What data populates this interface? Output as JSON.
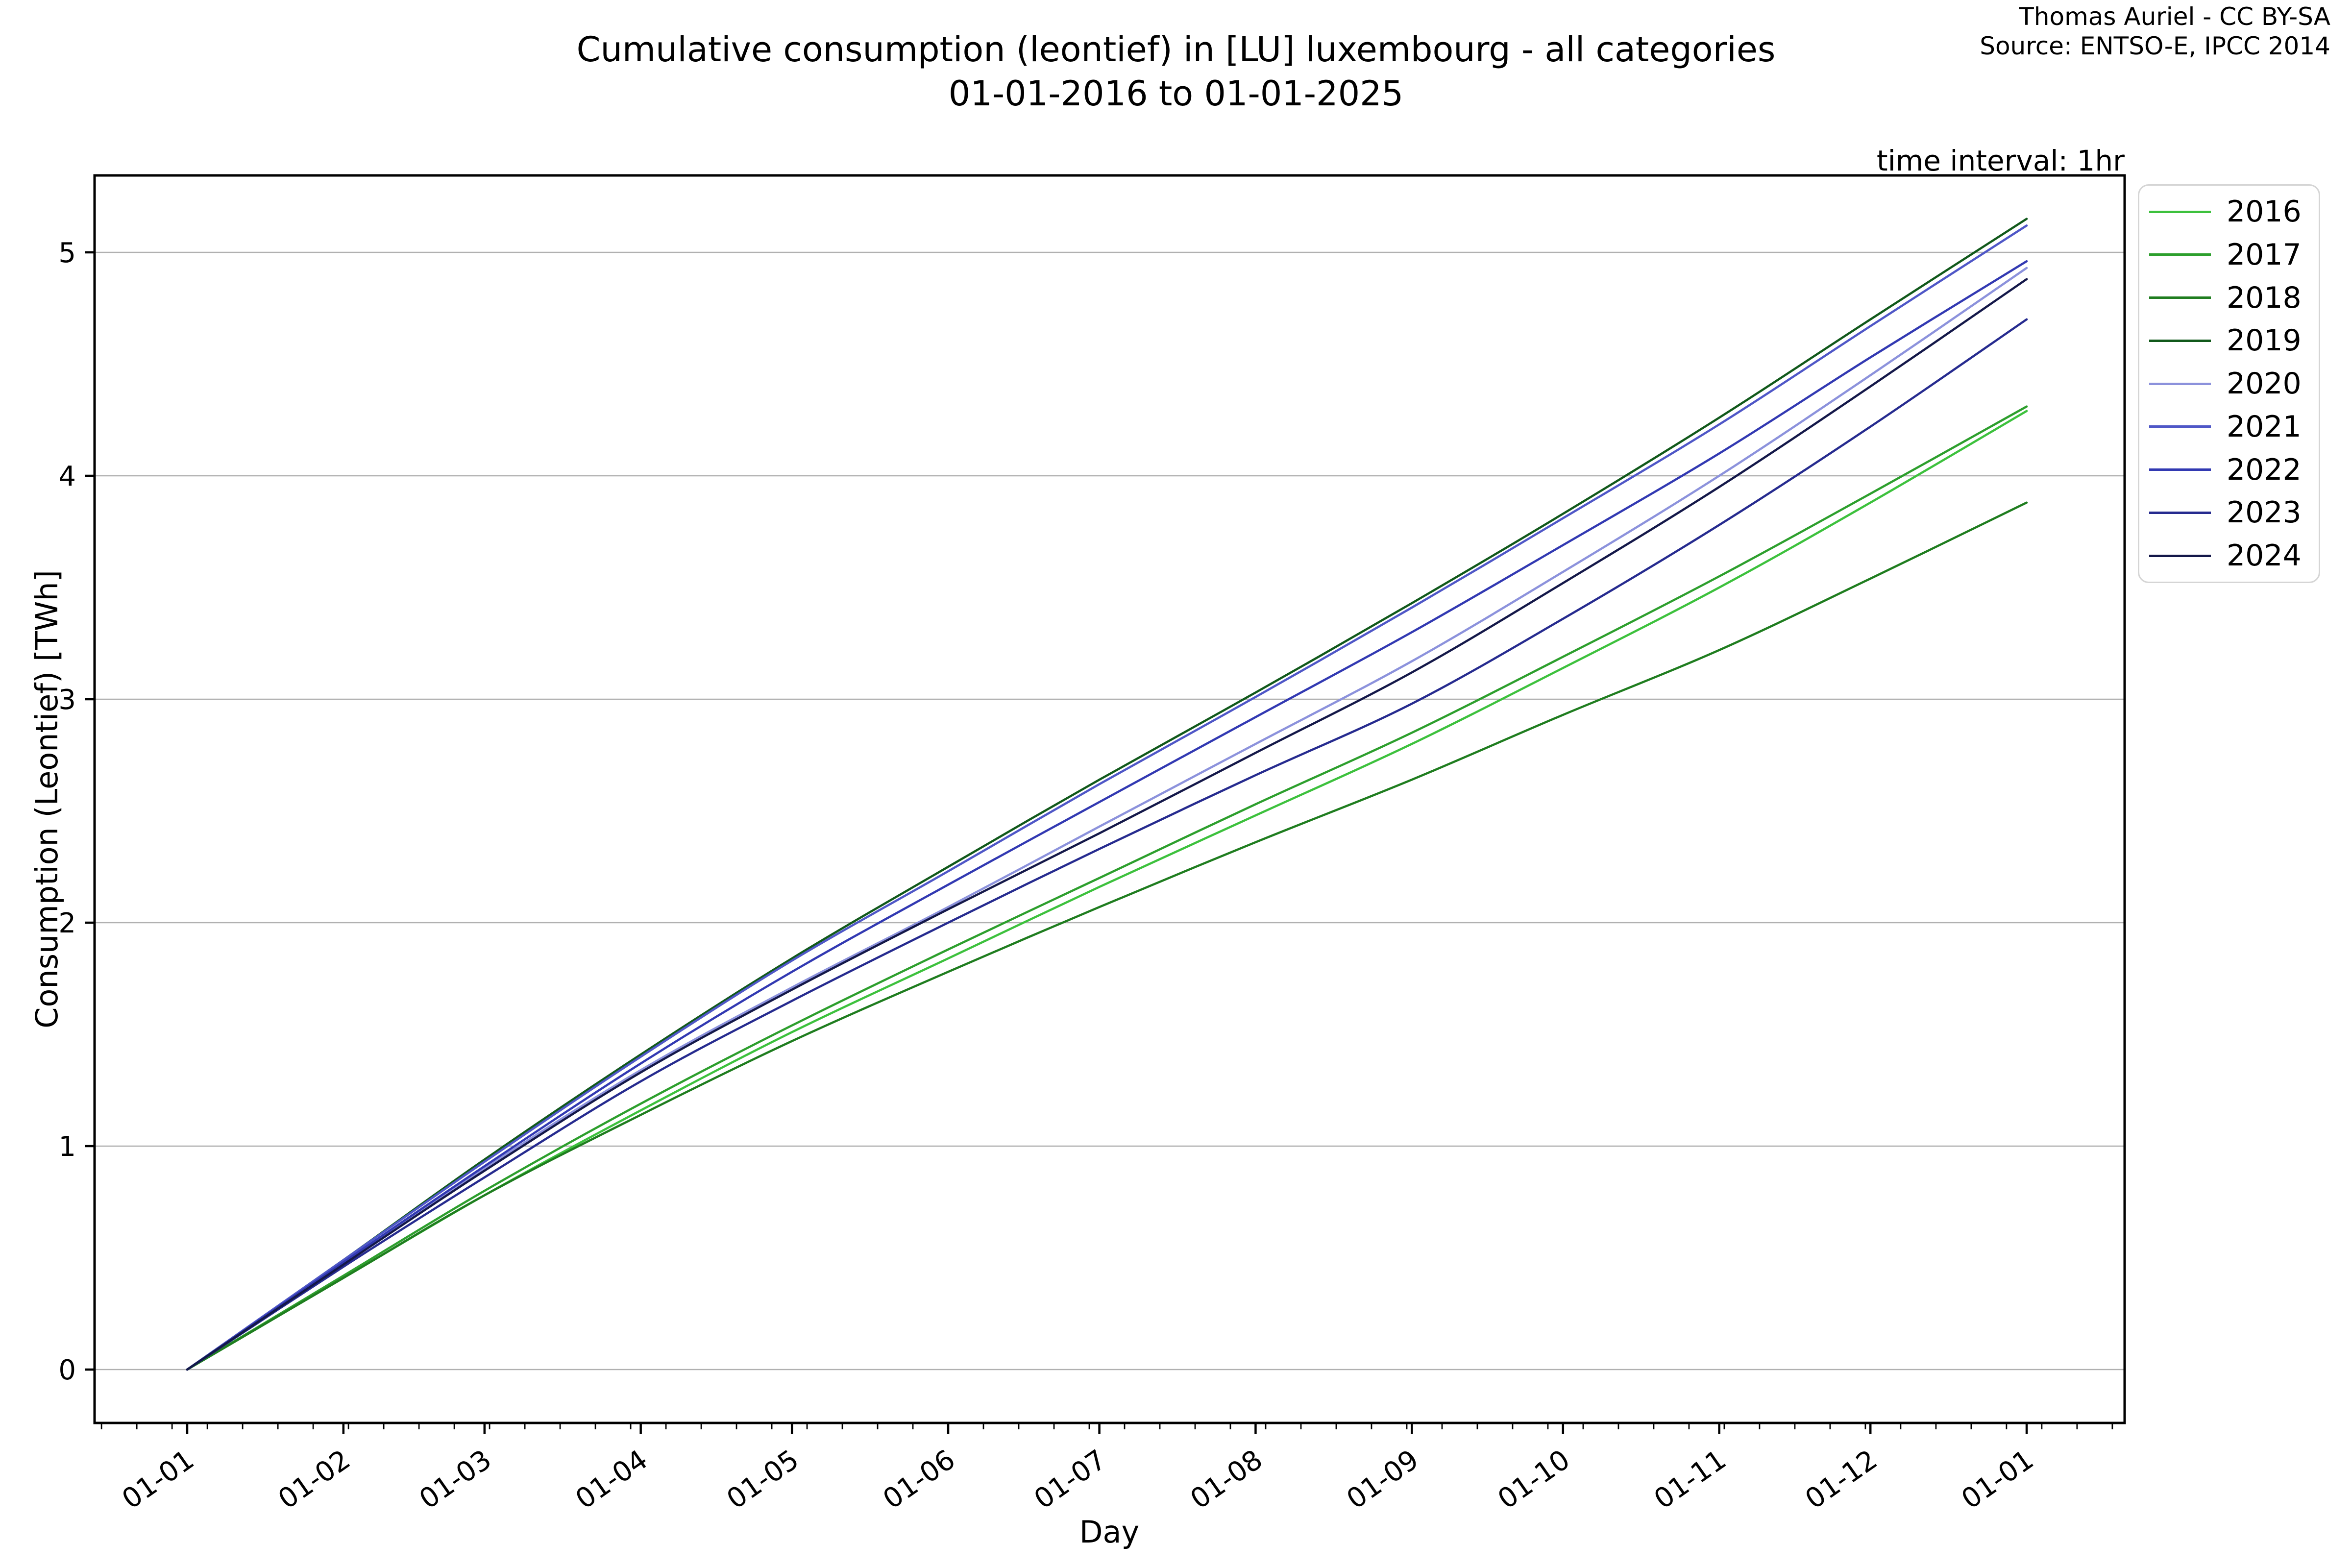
{
  "title": {
    "line1": "Cumulative consumption (leontief) in [LU] luxembourg - all categories",
    "line2": "01-01-2016 to 01-01-2025"
  },
  "attribution": {
    "line1": "Thomas Auriel - CC BY-SA",
    "line2": "Source: ENTSO-E, IPCC 2014"
  },
  "notes": {
    "time_interval": "time interval: 1hr"
  },
  "axes": {
    "xlabel": "Day",
    "ylabel": "Consumption (Leontief) [TWh]"
  },
  "chart_data": {
    "type": "line",
    "title": "Cumulative consumption (leontief) in [LU] luxembourg - all categories 01-01-2016 to 01-01-2025",
    "xlabel": "Day",
    "ylabel": "Consumption (Leontief) [TWh]",
    "units": "TWh",
    "grid": "horizontal-only",
    "legend_position": "outside-right",
    "x_tick_labels": [
      "01-01",
      "01-02",
      "01-03",
      "01-04",
      "01-05",
      "01-06",
      "01-07",
      "01-08",
      "01-09",
      "01-10",
      "01-11",
      "01-12",
      "01-01"
    ],
    "x_tick_days": [
      0,
      31,
      59,
      90,
      120,
      151,
      181,
      212,
      243,
      273,
      304,
      334,
      365
    ],
    "y_ticks": [
      0,
      1,
      2,
      3,
      4,
      5
    ],
    "ylim": [
      -0.24,
      5.33
    ],
    "xlim_days": [
      -18,
      384
    ],
    "minor_x_tick_step_days": 7,
    "minor_x_tick_start_day": -17,
    "series": [
      {
        "name": "2016",
        "color": "#3dc13d",
        "values": [
          0,
          0.41,
          0.78,
          1.16,
          1.51,
          1.84,
          2.16,
          2.48,
          2.8,
          3.14,
          3.5,
          3.88,
          4.29
        ]
      },
      {
        "name": "2017",
        "color": "#2d9f2d",
        "values": [
          0,
          0.42,
          0.8,
          1.19,
          1.54,
          1.88,
          2.2,
          2.53,
          2.85,
          3.19,
          3.55,
          3.92,
          4.31
        ]
      },
      {
        "name": "2018",
        "color": "#1f7d1f",
        "values": [
          0,
          0.41,
          0.78,
          1.14,
          1.47,
          1.78,
          2.07,
          2.36,
          2.64,
          2.93,
          3.22,
          3.54,
          3.88
        ]
      },
      {
        "name": "2019",
        "color": "#11591b",
        "values": [
          0,
          0.49,
          0.94,
          1.41,
          1.84,
          2.25,
          2.64,
          3.03,
          3.43,
          3.83,
          4.26,
          4.7,
          5.15
        ]
      },
      {
        "name": "2020",
        "color": "#8c92dc",
        "values": [
          0,
          0.47,
          0.9,
          1.34,
          1.71,
          2.07,
          2.43,
          2.8,
          3.17,
          3.57,
          4.0,
          4.45,
          4.93
        ]
      },
      {
        "name": "2021",
        "color": "#4f57c7",
        "values": [
          0,
          0.49,
          0.93,
          1.4,
          1.83,
          2.23,
          2.62,
          3.01,
          3.41,
          3.81,
          4.23,
          4.67,
          5.12
        ]
      },
      {
        "name": "2022",
        "color": "#3239b2",
        "values": [
          0,
          0.48,
          0.91,
          1.37,
          1.78,
          2.17,
          2.54,
          2.92,
          3.3,
          3.69,
          4.1,
          4.53,
          4.96
        ]
      },
      {
        "name": "2023",
        "color": "#262b8f",
        "values": [
          0,
          0.46,
          0.86,
          1.29,
          1.65,
          2.0,
          2.33,
          2.66,
          2.98,
          3.36,
          3.78,
          4.22,
          4.7
        ]
      },
      {
        "name": "2024",
        "color": "#141849",
        "values": [
          0,
          0.47,
          0.89,
          1.33,
          1.7,
          2.06,
          2.4,
          2.76,
          3.12,
          3.52,
          3.95,
          4.4,
          4.88
        ]
      }
    ]
  },
  "style_colors": {
    "grid": "#b0b0b0",
    "frame": "#000000",
    "tick": "#000000",
    "legend_border": "#d5d5d5",
    "background": "#ffffff"
  }
}
